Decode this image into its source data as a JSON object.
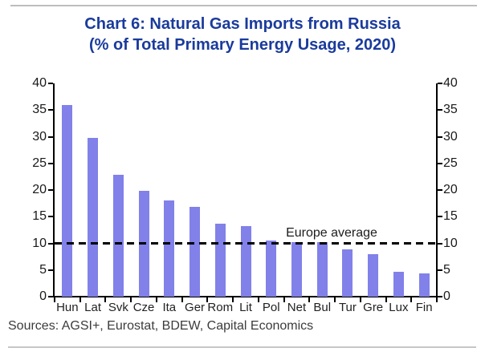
{
  "header": {
    "title_line1": "Chart 6: Natural Gas Imports from Russia",
    "title_line2": "(% of Total Primary Energy Usage, 2020)"
  },
  "footer": {
    "sources": "Sources: AGSI+, Eurostat, BDEW, Capital Economics"
  },
  "colors": {
    "bar": "#8181e9",
    "title": "#1a3b9c",
    "axis": "#000000",
    "tick_text": "#1a1a1a"
  },
  "chart_data": {
    "type": "bar",
    "title": "Chart 6: Natural Gas Imports from Russia (% of Total Primary Energy Usage, 2020)",
    "categories": [
      "Hun",
      "Lat",
      "Svk",
      "Cze",
      "Ita",
      "Ger",
      "Rom",
      "Lit",
      "Pol",
      "Net",
      "Bul",
      "Tur",
      "Gre",
      "Lux",
      "Fin"
    ],
    "values": [
      36,
      29.7,
      22.8,
      19.8,
      18,
      16.8,
      13.7,
      13.2,
      10.6,
      10.2,
      10.3,
      8.9,
      8,
      4.6,
      4.3
    ],
    "xlabel": "",
    "ylabel": "",
    "ylim": [
      0,
      40
    ],
    "yticks": [
      0,
      5,
      10,
      15,
      20,
      25,
      30,
      35,
      40
    ],
    "grid": false,
    "dual_axis": true,
    "legend": null,
    "reference_line": {
      "value": 10,
      "label": "Europe average",
      "style": "dashed"
    }
  }
}
